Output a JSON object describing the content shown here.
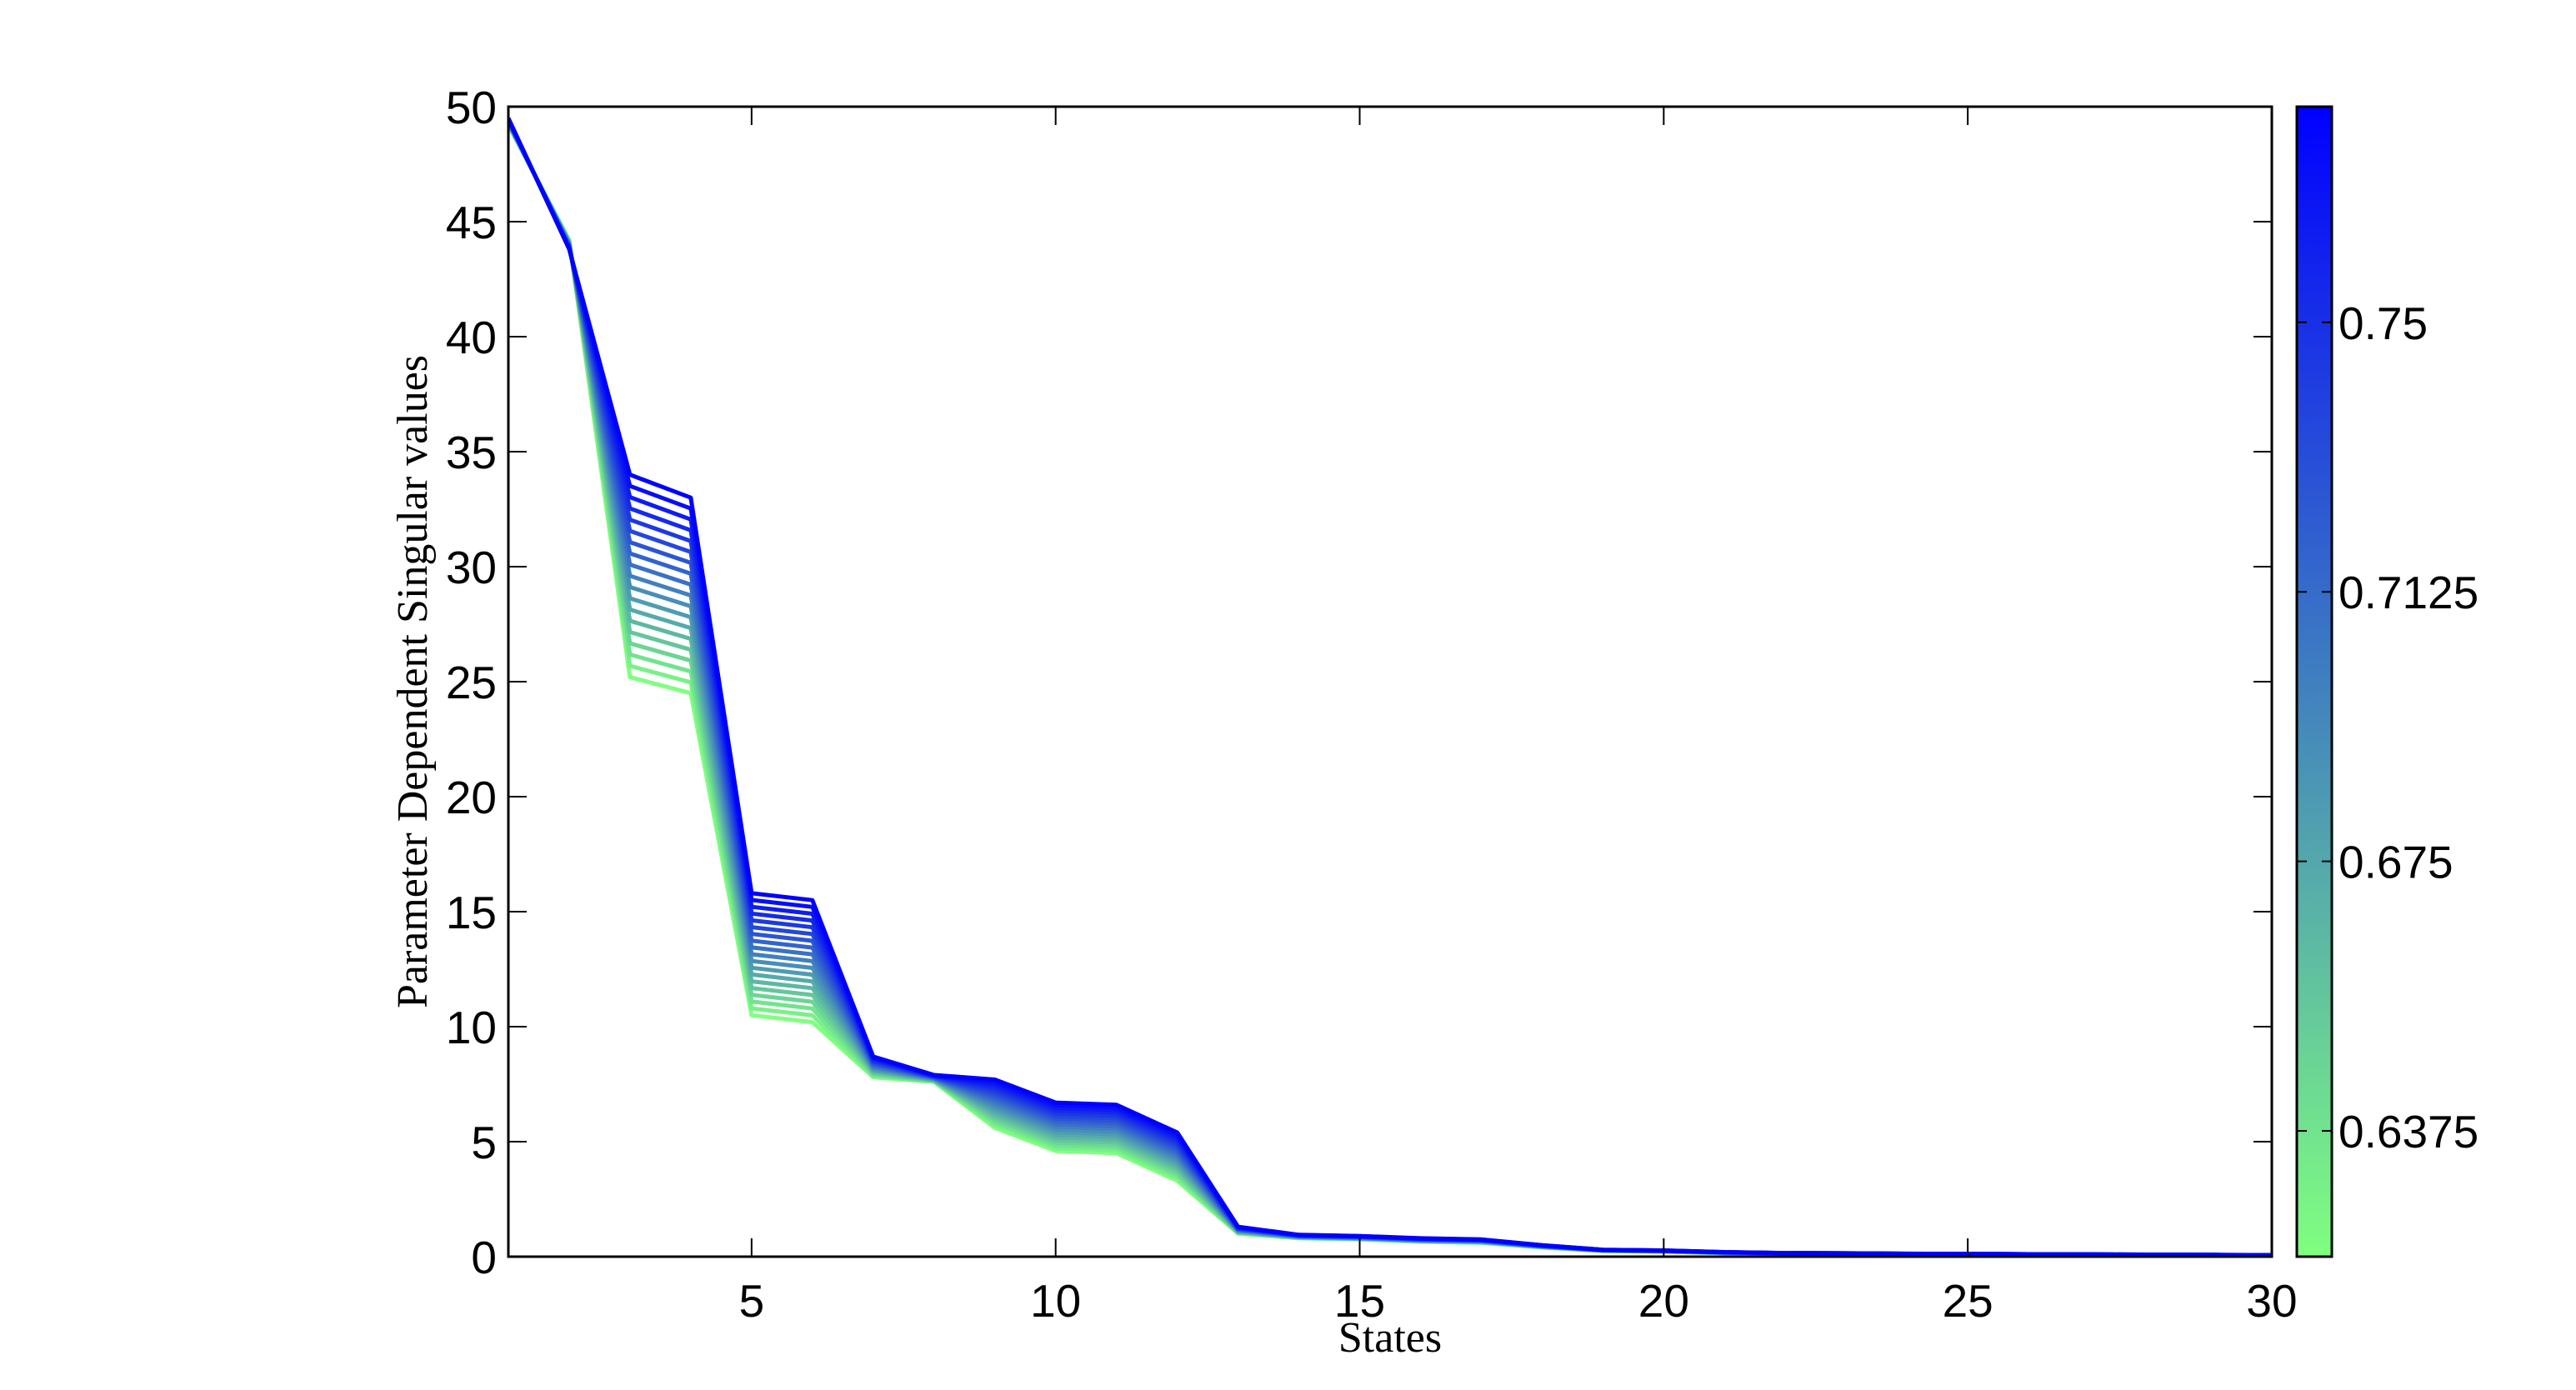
{
  "chart_data": {
    "type": "line",
    "title": "",
    "xlabel": "States",
    "ylabel": "Parameter Dependent Singular values",
    "xlim": [
      1,
      30
    ],
    "ylim": [
      0,
      50
    ],
    "xticks": [
      5,
      10,
      15,
      20,
      25,
      30
    ],
    "yticks": [
      0,
      5,
      10,
      15,
      20,
      25,
      30,
      35,
      40,
      45,
      50
    ],
    "x": [
      1,
      2,
      3,
      4,
      5,
      6,
      7,
      8,
      9,
      10,
      11,
      12,
      13,
      14,
      15,
      16,
      17,
      18,
      19,
      20,
      21,
      22,
      23,
      24,
      25,
      26,
      27,
      28,
      29,
      30
    ],
    "series": [
      {
        "parameter": 0.62,
        "values": [
          49.2,
          44.2,
          25.2,
          24.5,
          10.5,
          10.2,
          7.8,
          7.6,
          5.6,
          4.6,
          4.5,
          3.3,
          1.0,
          0.8,
          0.75,
          0.65,
          0.6,
          0.4,
          0.25,
          0.22,
          0.15,
          0.12,
          0.11,
          0.1,
          0.1,
          0.09,
          0.08,
          0.07,
          0.06,
          0.05
        ]
      },
      {
        "parameter": 0.78,
        "values": [
          49.5,
          43.8,
          34.0,
          33.0,
          15.8,
          15.5,
          8.7,
          7.9,
          7.7,
          6.7,
          6.6,
          5.4,
          1.3,
          0.95,
          0.9,
          0.8,
          0.75,
          0.5,
          0.3,
          0.27,
          0.2,
          0.16,
          0.15,
          0.13,
          0.12,
          0.11,
          0.1,
          0.09,
          0.08,
          0.07
        ]
      }
    ],
    "n_curves": 19,
    "grid": false,
    "colorbar": {
      "ticks": [
        "0.6375",
        "0.675",
        "0.7125",
        "0.75"
      ],
      "min": 0.62,
      "max": 0.78,
      "color_low": "#80ff80",
      "color_high": "#0000ff"
    }
  }
}
